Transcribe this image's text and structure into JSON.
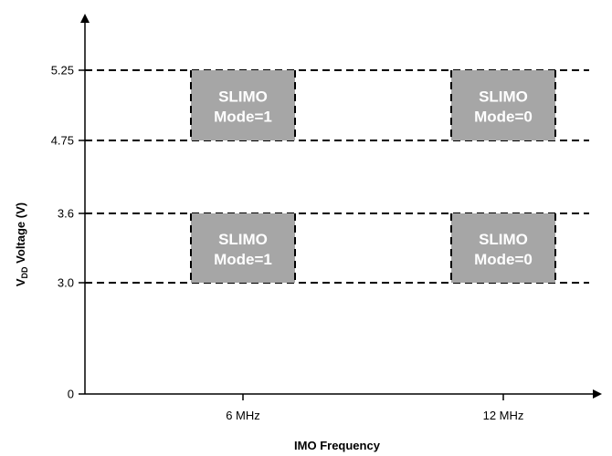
{
  "chart_data": {
    "type": "region",
    "xlabel": "IMO Frequency",
    "ylabel": {
      "main": "V",
      "sub": "DD",
      "rest": " Voltage (V)"
    },
    "y_ticks": [
      {
        "value": 0,
        "label": "0"
      },
      {
        "value": 3.0,
        "label": "3.0"
      },
      {
        "value": 3.6,
        "label": "3.6"
      },
      {
        "value": 4.75,
        "label": "4.75"
      },
      {
        "value": 5.25,
        "label": "5.25"
      }
    ],
    "x_ticks": [
      {
        "value": 6,
        "label": "6 MHz"
      },
      {
        "value": 12,
        "label": "12 MHz"
      }
    ],
    "grid": "dashed at 3.0, 3.6, 4.75, 5.25",
    "regions": [
      {
        "x": 6,
        "y_min": 4.75,
        "y_max": 5.25,
        "line1": "SLIMO",
        "line2": "Mode=1"
      },
      {
        "x": 12,
        "y_min": 4.75,
        "y_max": 5.25,
        "line1": "SLIMO",
        "line2": "Mode=0"
      },
      {
        "x": 6,
        "y_min": 3.0,
        "y_max": 3.6,
        "line1": "SLIMO",
        "line2": "Mode=1"
      },
      {
        "x": 12,
        "y_min": 3.0,
        "y_max": 3.6,
        "line1": "SLIMO",
        "line2": "Mode=0"
      }
    ],
    "colors": {
      "region_fill": "#a6a6a6",
      "region_text": "#ffffff",
      "lines": "#000000"
    }
  }
}
